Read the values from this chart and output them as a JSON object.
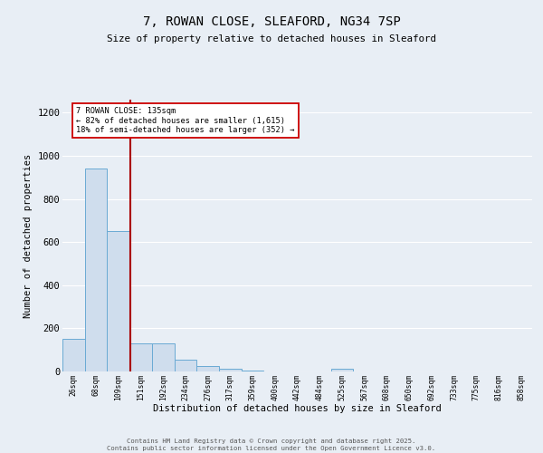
{
  "title1": "7, ROWAN CLOSE, SLEAFORD, NG34 7SP",
  "title2": "Size of property relative to detached houses in Sleaford",
  "xlabel": "Distribution of detached houses by size in Sleaford",
  "ylabel": "Number of detached properties",
  "bar_color": "#cfdded",
  "bar_edge_color": "#6aaad4",
  "categories": [
    "26sqm",
    "68sqm",
    "109sqm",
    "151sqm",
    "192sqm",
    "234sqm",
    "276sqm",
    "317sqm",
    "359sqm",
    "400sqm",
    "442sqm",
    "484sqm",
    "525sqm",
    "567sqm",
    "608sqm",
    "650sqm",
    "692sqm",
    "733sqm",
    "775sqm",
    "816sqm",
    "858sqm"
  ],
  "values": [
    150,
    940,
    650,
    130,
    130,
    55,
    25,
    12,
    5,
    0,
    0,
    0,
    12,
    0,
    0,
    0,
    0,
    0,
    0,
    0,
    0
  ],
  "vline_x": 2.55,
  "vline_color": "#aa0000",
  "ylim": [
    0,
    1260
  ],
  "yticks": [
    0,
    200,
    400,
    600,
    800,
    1000,
    1200
  ],
  "annotation_text": "7 ROWAN CLOSE: 135sqm\n← 82% of detached houses are smaller (1,615)\n18% of semi-detached houses are larger (352) →",
  "annotation_box_color": "#ffffff",
  "annotation_box_edge": "#cc0000",
  "footer1": "Contains HM Land Registry data © Crown copyright and database right 2025.",
  "footer2": "Contains public sector information licensed under the Open Government Licence v3.0.",
  "background_color": "#e8eef5",
  "grid_color": "#ffffff",
  "plot_bg_color": "#e8eef5"
}
